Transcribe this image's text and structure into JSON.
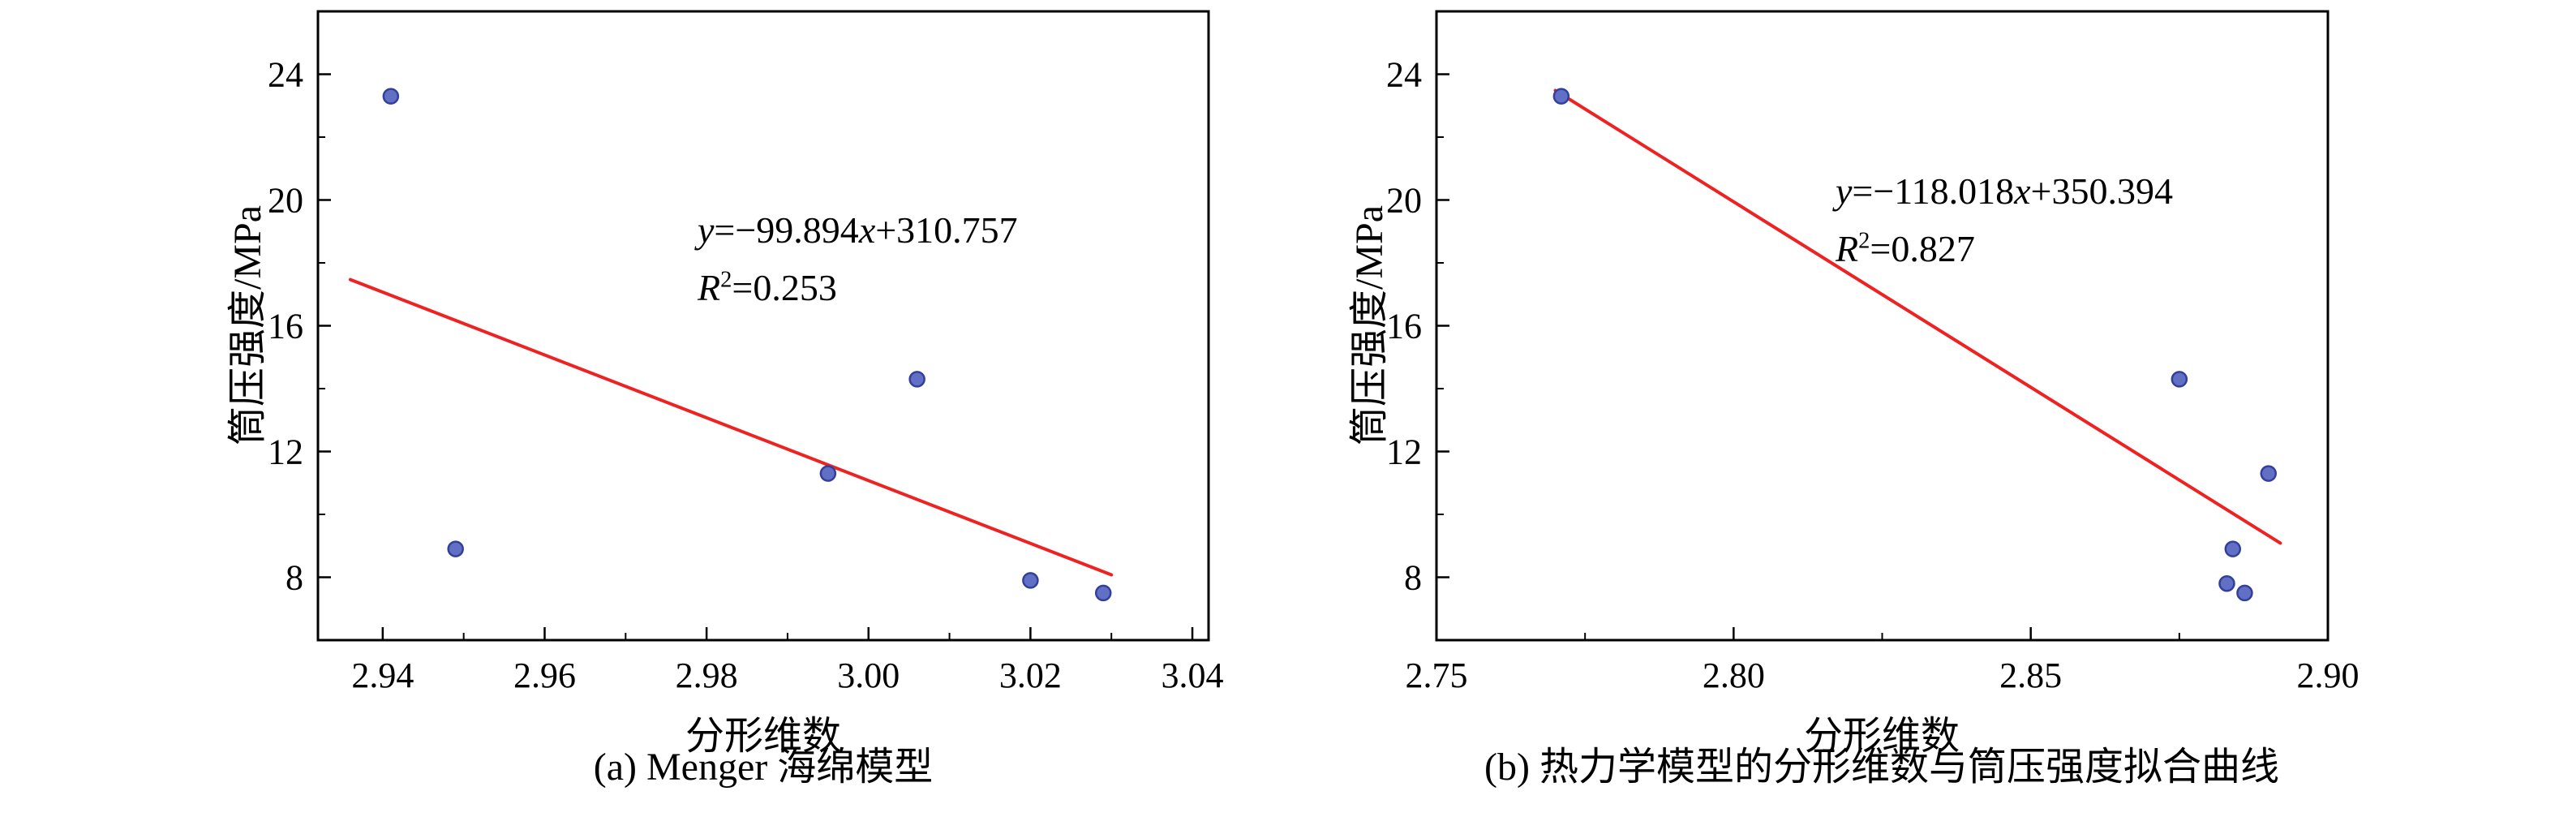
{
  "figure": {
    "background": "#ffffff"
  },
  "colors": {
    "point_fill": "#6170c4",
    "point_stroke": "#32409b",
    "fit_line": "#ee2222",
    "axis": "#000000",
    "text": "#000000"
  },
  "chart_data": [
    {
      "type": "scatter",
      "panel": "a",
      "subtitle": "(a) Menger 海绵模型",
      "xlabel": "分形维数",
      "ylabel": "筒压强度/MPa",
      "xlim": [
        2.932,
        3.042
      ],
      "ylim": [
        6,
        26
      ],
      "xticks": [
        2.94,
        2.96,
        2.98,
        3.0,
        3.02,
        3.04
      ],
      "xtick_labels": [
        "2.94",
        "2.96",
        "2.98",
        "3.00",
        "3.02",
        "3.04"
      ],
      "yticks": [
        8,
        12,
        16,
        20,
        24
      ],
      "ytick_labels": [
        "8",
        "12",
        "16",
        "20",
        "24"
      ],
      "x_minor_step": 0.01,
      "y_minor_step": 2,
      "grid": false,
      "legend": false,
      "points": [
        {
          "x": 2.941,
          "y": 23.3
        },
        {
          "x": 2.949,
          "y": 8.9
        },
        {
          "x": 2.995,
          "y": 11.3
        },
        {
          "x": 3.006,
          "y": 14.3
        },
        {
          "x": 3.02,
          "y": 7.9
        },
        {
          "x": 3.029,
          "y": 7.5
        }
      ],
      "fit": {
        "slope": -99.894,
        "intercept": 310.757,
        "r2": 0.253,
        "x_start": 2.936,
        "x_end": 3.03
      },
      "annotation": {
        "y_var": "y",
        "slope_part": "=−99.894",
        "x_var": "x",
        "intercept_part": "+310.757",
        "r_var": "R",
        "r_sup": "2",
        "r_value_part": "=0.253"
      }
    },
    {
      "type": "scatter",
      "panel": "b",
      "subtitle": "(b) 热力学模型的分形维数与筒压强度拟合曲线",
      "xlabel": "分形维数",
      "ylabel": "筒压强度/MPa",
      "xlim": [
        2.75,
        2.9
      ],
      "ylim": [
        6,
        26
      ],
      "xticks": [
        2.75,
        2.8,
        2.85,
        2.9
      ],
      "xtick_labels": [
        "2.75",
        "2.80",
        "2.85",
        "2.90"
      ],
      "yticks": [
        8,
        12,
        16,
        20,
        24
      ],
      "ytick_labels": [
        "8",
        "12",
        "16",
        "20",
        "24"
      ],
      "x_minor_step": 0.025,
      "y_minor_step": 2,
      "grid": false,
      "legend": false,
      "points": [
        {
          "x": 2.771,
          "y": 23.3
        },
        {
          "x": 2.875,
          "y": 14.3
        },
        {
          "x": 2.883,
          "y": 7.8
        },
        {
          "x": 2.884,
          "y": 8.9
        },
        {
          "x": 2.886,
          "y": 7.5
        },
        {
          "x": 2.89,
          "y": 11.3
        }
      ],
      "fit": {
        "slope": -118.018,
        "intercept": 350.394,
        "r2": 0.827,
        "x_start": 2.77,
        "x_end": 2.892
      },
      "annotation": {
        "y_var": "y",
        "slope_part": "=−118.018",
        "x_var": "x",
        "intercept_part": "+350.394",
        "r_var": "R",
        "r_sup": "2",
        "r_value_part": "=0.827"
      }
    }
  ]
}
